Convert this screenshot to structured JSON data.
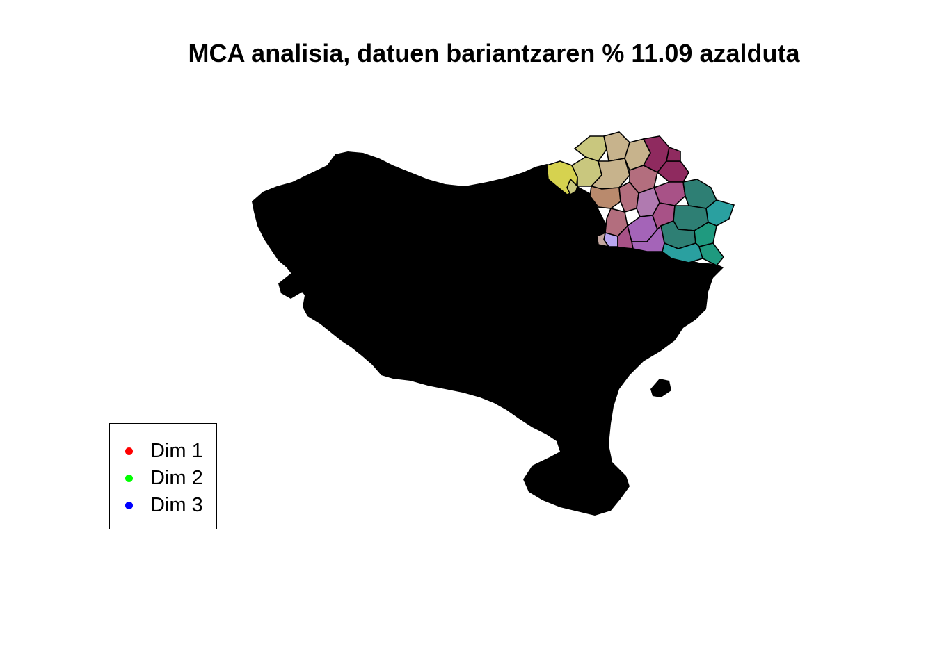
{
  "title": "MCA analisia, datuen bariantzaren % 11.09 azalduta",
  "legend": {
    "items": [
      {
        "label": "Dim 1",
        "color": "#ff0000"
      },
      {
        "label": "Dim 2",
        "color": "#00ff00"
      },
      {
        "label": "Dim 3",
        "color": "#0000ff"
      }
    ]
  },
  "map": {
    "background_region_color": "#000000",
    "municipality_colors": [
      "#d6d24f",
      "#c9c77e",
      "#c7b38c",
      "#b98a6d",
      "#b36e7e",
      "#a85287",
      "#8f2a5f",
      "#b07ab0",
      "#a464b8",
      "#2e7f74",
      "#1f9a7f",
      "#2aa0a0",
      "#b9a6f0",
      "#c4a7a0"
    ]
  }
}
